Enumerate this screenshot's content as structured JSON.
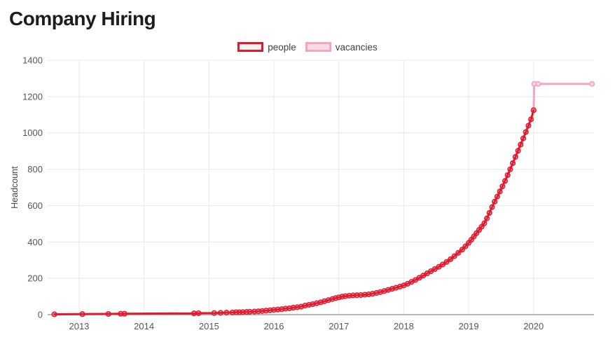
{
  "page": {
    "title": "Company Hiring"
  },
  "legend": {
    "items": [
      {
        "label": "people",
        "color": "#e5182d",
        "fill": "#f4f3f0"
      },
      {
        "label": "vacancies",
        "color": "#f2a6c1",
        "fill": "#f9dbe6"
      }
    ]
  },
  "chart_data": {
    "type": "line",
    "title": "Company Hiring",
    "xlabel": "",
    "ylabel": "Headcount",
    "xlim": [
      2012.515,
      2020.93
    ],
    "ylim": [
      0,
      1400
    ],
    "xticks": [
      2013,
      2014,
      2015,
      2016,
      2017,
      2018,
      2019,
      2020
    ],
    "yticks": [
      0,
      200,
      400,
      600,
      800,
      1000,
      1200,
      1400
    ],
    "grid": true,
    "legend_position": "top-center",
    "axis_color": "#8c8c8c",
    "grid_color": "#e8e8e8",
    "tick_label_color": "#53575c",
    "series": [
      {
        "name": "people",
        "color": "#e5182d",
        "marker_fill": "none",
        "points": [
          [
            2012.62,
            2
          ],
          [
            2013.05,
            3
          ],
          [
            2013.45,
            4
          ],
          [
            2013.64,
            5
          ],
          [
            2013.7,
            5
          ],
          [
            2014.77,
            7
          ],
          [
            2014.84,
            8
          ],
          [
            2015.08,
            9
          ],
          [
            2015.18,
            10
          ],
          [
            2015.27,
            11
          ],
          [
            2015.36,
            12
          ],
          [
            2015.42,
            13
          ],
          [
            2015.47,
            13
          ],
          [
            2015.52,
            14
          ],
          [
            2015.58,
            15
          ],
          [
            2015.63,
            16
          ],
          [
            2015.7,
            17
          ],
          [
            2015.76,
            18
          ],
          [
            2015.82,
            20
          ],
          [
            2015.88,
            22
          ],
          [
            2015.94,
            24
          ],
          [
            2016.0,
            26
          ],
          [
            2016.06,
            28
          ],
          [
            2016.12,
            30
          ],
          [
            2016.18,
            33
          ],
          [
            2016.24,
            35
          ],
          [
            2016.3,
            38
          ],
          [
            2016.36,
            41
          ],
          [
            2016.42,
            44
          ],
          [
            2016.48,
            50
          ],
          [
            2016.54,
            54
          ],
          [
            2016.6,
            58
          ],
          [
            2016.66,
            63
          ],
          [
            2016.72,
            68
          ],
          [
            2016.78,
            74
          ],
          [
            2016.84,
            80
          ],
          [
            2016.9,
            86
          ],
          [
            2016.95,
            91
          ],
          [
            2017.0,
            95
          ],
          [
            2017.05,
            99
          ],
          [
            2017.1,
            102
          ],
          [
            2017.16,
            104
          ],
          [
            2017.22,
            106
          ],
          [
            2017.28,
            107
          ],
          [
            2017.34,
            108
          ],
          [
            2017.4,
            110
          ],
          [
            2017.46,
            112
          ],
          [
            2017.52,
            115
          ],
          [
            2017.58,
            119
          ],
          [
            2017.64,
            124
          ],
          [
            2017.7,
            130
          ],
          [
            2017.76,
            136
          ],
          [
            2017.82,
            142
          ],
          [
            2017.88,
            148
          ],
          [
            2017.94,
            154
          ],
          [
            2018.0,
            161
          ],
          [
            2018.06,
            170
          ],
          [
            2018.12,
            180
          ],
          [
            2018.18,
            191
          ],
          [
            2018.24,
            203
          ],
          [
            2018.3,
            215
          ],
          [
            2018.36,
            227
          ],
          [
            2018.42,
            239
          ],
          [
            2018.48,
            251
          ],
          [
            2018.54,
            263
          ],
          [
            2018.6,
            276
          ],
          [
            2018.66,
            290
          ],
          [
            2018.72,
            305
          ],
          [
            2018.78,
            322
          ],
          [
            2018.84,
            340
          ],
          [
            2018.9,
            358
          ],
          [
            2018.95,
            376
          ],
          [
            2019.0,
            395
          ],
          [
            2019.04,
            412
          ],
          [
            2019.08,
            430
          ],
          [
            2019.12,
            448
          ],
          [
            2019.16,
            466
          ],
          [
            2019.2,
            484
          ],
          [
            2019.24,
            503
          ],
          [
            2019.28,
            530
          ],
          [
            2019.32,
            560
          ],
          [
            2019.36,
            592
          ],
          [
            2019.4,
            622
          ],
          [
            2019.44,
            650
          ],
          [
            2019.48,
            678
          ],
          [
            2019.52,
            706
          ],
          [
            2019.56,
            736
          ],
          [
            2019.6,
            768
          ],
          [
            2019.64,
            800
          ],
          [
            2019.68,
            834
          ],
          [
            2019.72,
            868
          ],
          [
            2019.76,
            902
          ],
          [
            2019.8,
            936
          ],
          [
            2019.84,
            970
          ],
          [
            2019.88,
            1005
          ],
          [
            2019.92,
            1040
          ],
          [
            2019.96,
            1075
          ],
          [
            2020.0,
            1125
          ]
        ]
      },
      {
        "name": "vacancies",
        "color": "#f2a6c1",
        "marker_fill": "#f9d3e0",
        "points": [
          [
            2012.62,
            2
          ],
          null,
          [
            2020.0,
            1125
          ],
          [
            2020.01,
            1270
          ],
          [
            2020.07,
            1270
          ],
          [
            2020.9,
            1270
          ]
        ]
      }
    ]
  }
}
